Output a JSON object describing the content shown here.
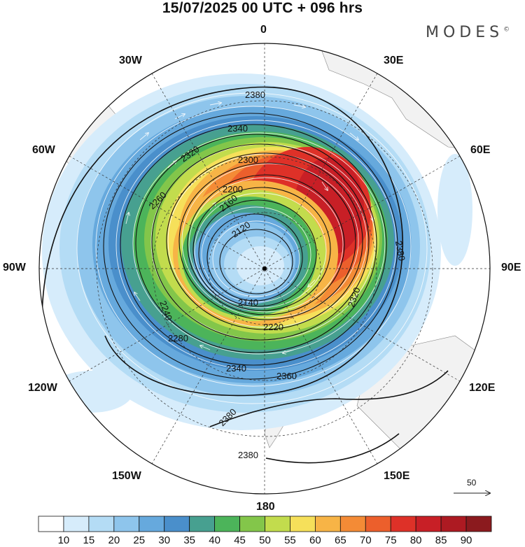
{
  "title": "15/07/2025  00 UTC  + 096 hrs",
  "brand": "MODES",
  "brand_mark": "©",
  "longitude_labels": {
    "top": "0",
    "bottom": "180",
    "left": "90W",
    "right": "90E",
    "nw30": "30W",
    "ne30": "30E",
    "w60": "60W",
    "e60": "60E",
    "w120": "120W",
    "e120": "120E",
    "w150": "150W",
    "e150": "150E"
  },
  "contour_labels": [
    "2380",
    "2340",
    "2320",
    "2300",
    "2260",
    "2200",
    "2160",
    "2120",
    "2140",
    "2220",
    "2240",
    "2280",
    "2320",
    "2340",
    "2360",
    "2380",
    "2380",
    "2380"
  ],
  "vector_scale_label": "50",
  "colorbar": {
    "levels": [
      "10",
      "15",
      "20",
      "25",
      "30",
      "35",
      "40",
      "45",
      "50",
      "55",
      "60",
      "65",
      "70",
      "75",
      "80",
      "85",
      "90"
    ],
    "colors": [
      "#ffffff",
      "#d6ecfb",
      "#b4dcf5",
      "#8ec5ec",
      "#66a9dd",
      "#4a8fcb",
      "#47a090",
      "#4cb45a",
      "#83c64a",
      "#c2dc4d",
      "#f6e05a",
      "#f7b446",
      "#f48b36",
      "#ec5f2c",
      "#de3128",
      "#c81f26",
      "#ad1a22",
      "#8b1a1e"
    ]
  },
  "icons": {
    "vector_arrow": "right-arrow-icon",
    "pole_marker": "pole-dot-icon"
  }
}
